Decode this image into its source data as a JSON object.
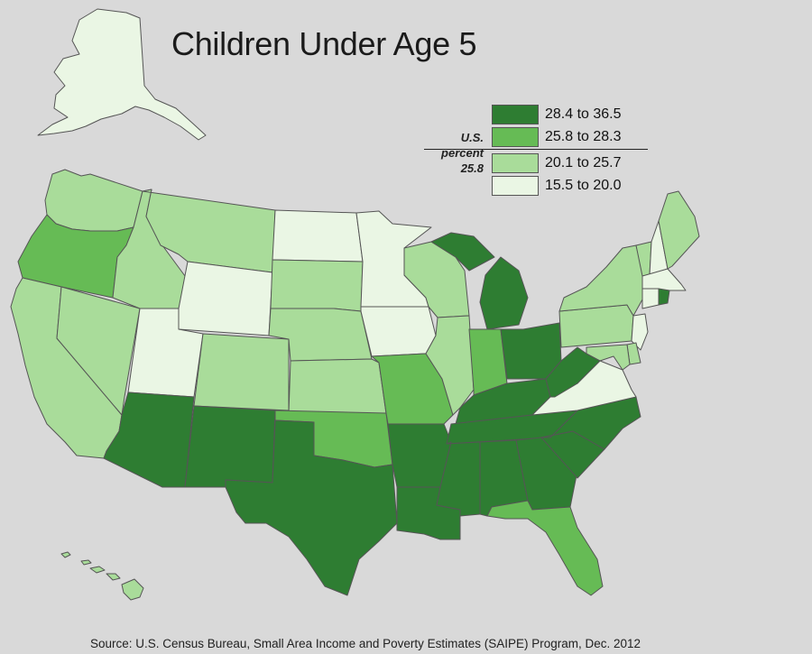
{
  "title": "Children Under Age 5",
  "source": "Source: U.S. Census Bureau, Small Area Income and Poverty Estimates (SAIPE) Program, Dec. 2012",
  "legend": {
    "us_line1": "U.S.",
    "us_line2": "percent",
    "us_value": "25.8",
    "classes": [
      {
        "label": "28.4 to 36.5",
        "color": "#2e7d32"
      },
      {
        "label": "25.8 to 28.3",
        "color": "#66bb55"
      },
      {
        "label": "20.1 to 25.7",
        "color": "#a9dc9a"
      },
      {
        "label": "15.5 to 20.0",
        "color": "#eaf6e4"
      }
    ]
  },
  "class_colors": {
    "c4": "#2e7d32",
    "c3": "#66bb55",
    "c2": "#a9dc9a",
    "c1": "#eaf6e4"
  },
  "state_classes": {
    "WA": "c2",
    "OR": "c3",
    "CA": "c2",
    "NV": "c2",
    "ID": "c2",
    "MT": "c2",
    "WY": "c1",
    "UT": "c1",
    "AZ": "c4",
    "CO": "c2",
    "NM": "c4",
    "ND": "c1",
    "SD": "c2",
    "NE": "c2",
    "KS": "c2",
    "OK": "c3",
    "TX": "c4",
    "MN": "c1",
    "IA": "c1",
    "MO": "c3",
    "AR": "c4",
    "LA": "c4",
    "WI": "c2",
    "IL": "c2",
    "MI": "c4",
    "IN": "c3",
    "OH": "c4",
    "KY": "c4",
    "TN": "c4",
    "MS": "c4",
    "AL": "c4",
    "GA": "c4",
    "FL": "c3",
    "SC": "c4",
    "NC": "c4",
    "VA": "c1",
    "WV": "c4",
    "PA": "c2",
    "NY": "c2",
    "VT": "c2",
    "NH": "c1",
    "ME": "c2",
    "MA": "c1",
    "CT": "c1",
    "RI": "c4",
    "NJ": "c1",
    "DE": "c2",
    "MD": "c2",
    "AK": "c1",
    "HI": "c2"
  }
}
